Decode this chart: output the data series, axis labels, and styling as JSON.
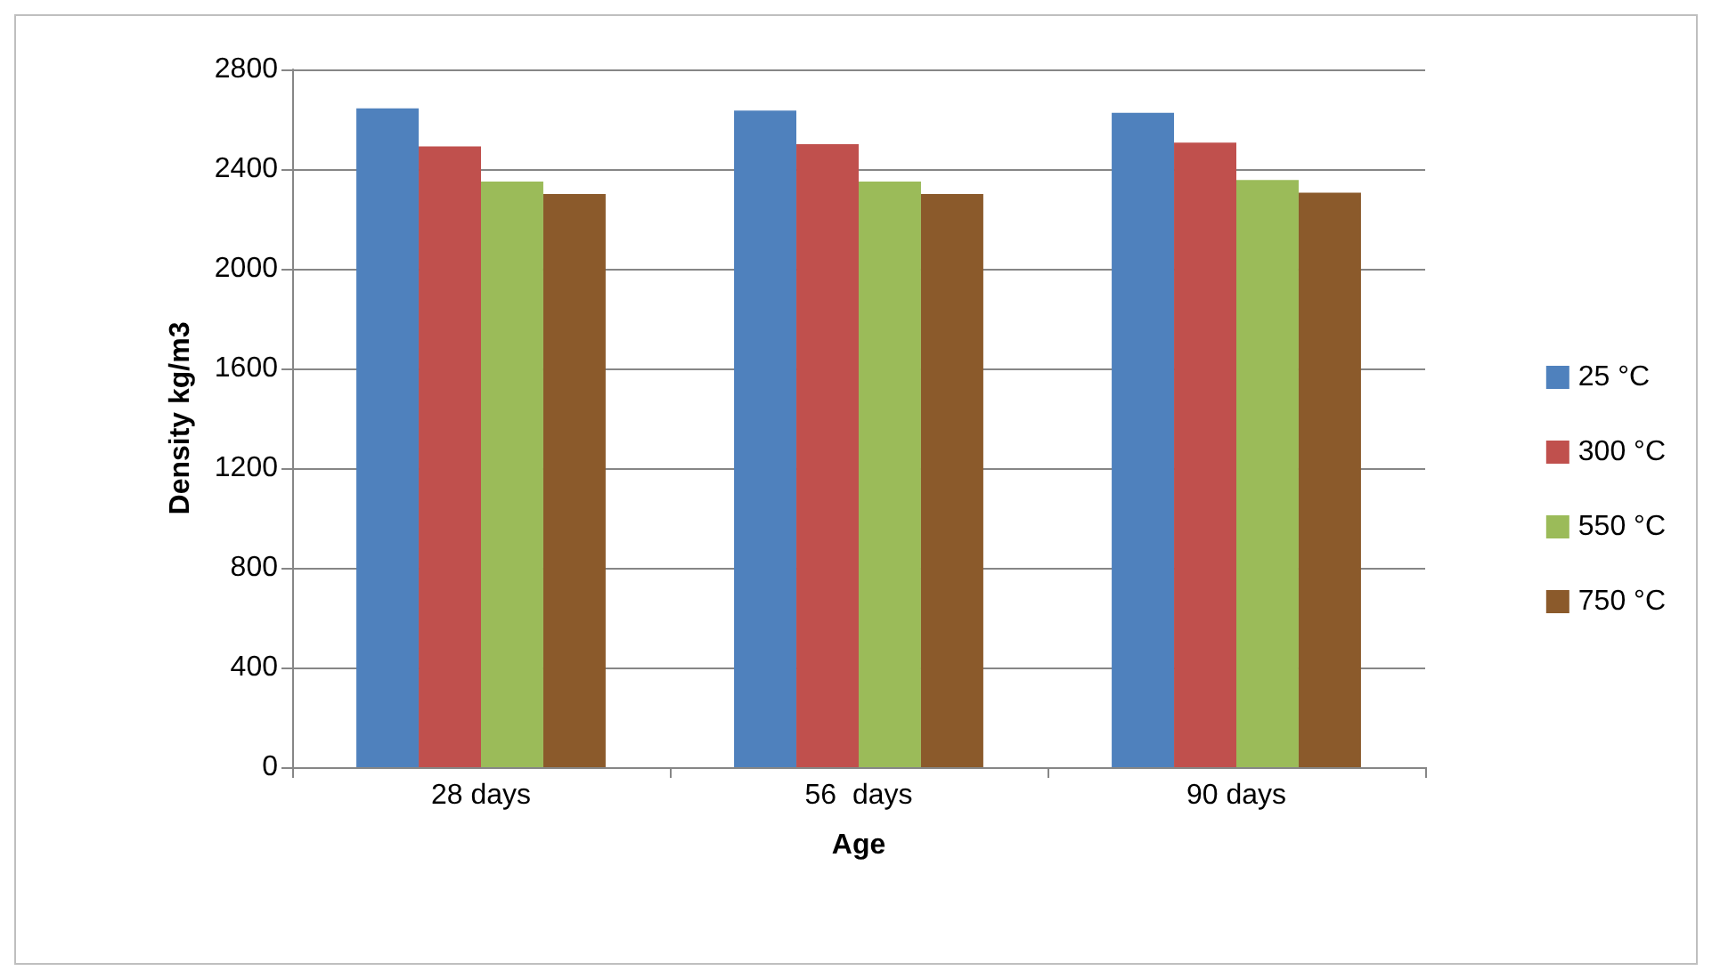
{
  "chart_data": {
    "type": "bar",
    "xlabel": "Age",
    "ylabel": "Density kg/m3",
    "categories": [
      "28 days",
      "56  days",
      "90 days"
    ],
    "series": [
      {
        "name": "25 °C",
        "color": "#4f81bd",
        "values": [
          2644,
          2635,
          2626
        ]
      },
      {
        "name": "300 °C",
        "color": "#c0504d",
        "values": [
          2491,
          2500,
          2506
        ]
      },
      {
        "name": "550 °C",
        "color": "#9bbb59",
        "values": [
          2350,
          2350,
          2356
        ]
      },
      {
        "name": "750 °C",
        "color": "#8b5a2b",
        "values": [
          2300,
          2300,
          2305
        ]
      }
    ],
    "ylim": [
      0,
      2800
    ],
    "yticks": [
      0,
      400,
      800,
      1200,
      1600,
      2000,
      2400,
      2800
    ],
    "grid": "y",
    "legend": "right"
  }
}
